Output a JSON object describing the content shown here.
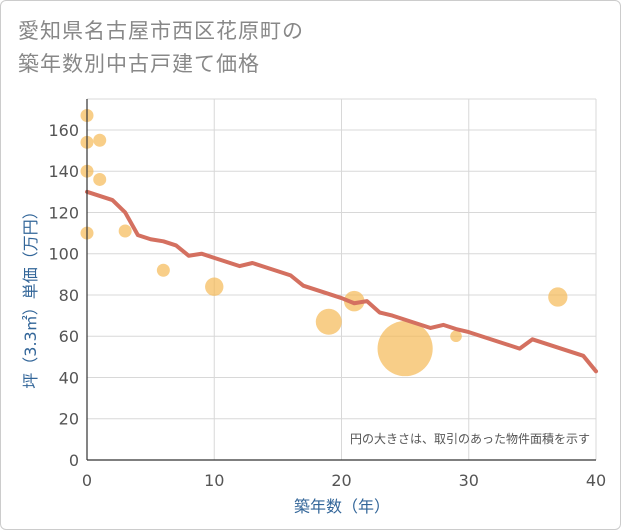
{
  "title_lines": [
    "愛知県名古屋市西区花原町の",
    "築年数別中古戸建て価格"
  ],
  "chart_data": {
    "type": "scatter+line",
    "title": "愛知県名古屋市西区花原町の築年数別中古戸建て価格",
    "xlabel": "築年数（年）",
    "ylabel": "坪（3.3㎡）単価（万円）",
    "xlim": [
      0,
      40
    ],
    "ylim": [
      0,
      175
    ],
    "xticks": [
      0,
      10,
      20,
      30,
      40
    ],
    "yticks": [
      0,
      20,
      40,
      60,
      80,
      100,
      120,
      140,
      160
    ],
    "grid": true,
    "note": "円の大きさは、取引のあった物件面積を示す",
    "scatter": [
      {
        "x": 0,
        "y": 167,
        "size": 1
      },
      {
        "x": 0,
        "y": 154,
        "size": 1
      },
      {
        "x": 0,
        "y": 140,
        "size": 1
      },
      {
        "x": 0,
        "y": 110,
        "size": 1
      },
      {
        "x": 1,
        "y": 155,
        "size": 1
      },
      {
        "x": 1,
        "y": 136,
        "size": 1
      },
      {
        "x": 3,
        "y": 111,
        "size": 1
      },
      {
        "x": 6,
        "y": 92,
        "size": 1
      },
      {
        "x": 10,
        "y": 84,
        "size": 2
      },
      {
        "x": 19,
        "y": 67,
        "size": 4
      },
      {
        "x": 21,
        "y": 77,
        "size": 2.5
      },
      {
        "x": 25,
        "y": 54,
        "size": 18
      },
      {
        "x": 29,
        "y": 60,
        "size": 0.8
      },
      {
        "x": 37,
        "y": 79,
        "size": 2.2
      }
    ],
    "trend": {
      "x": [
        0,
        2,
        3,
        4,
        5,
        6,
        7,
        8,
        9,
        10,
        11,
        12,
        13,
        14,
        15,
        16,
        17,
        18,
        19,
        20,
        21,
        22,
        23,
        24,
        25,
        26,
        27,
        28,
        29,
        30,
        31,
        32,
        33,
        34,
        35,
        36,
        37,
        38,
        39,
        40
      ],
      "y": [
        130,
        126,
        120,
        109,
        107,
        106,
        104,
        99,
        100,
        98,
        96,
        94,
        95.5,
        93.5,
        91.5,
        89.5,
        84.5,
        82.5,
        80.5,
        78.5,
        76,
        77,
        71.5,
        70,
        68,
        66,
        64,
        65.5,
        63.5,
        62,
        60,
        58,
        56,
        54,
        58.5,
        56.5,
        54.5,
        52.5,
        50.5,
        43
      ]
    },
    "colors": {
      "bubble": "#f5b955",
      "trend": "#d47060",
      "grid": "#d8d8d8",
      "axis": "#333333"
    }
  }
}
